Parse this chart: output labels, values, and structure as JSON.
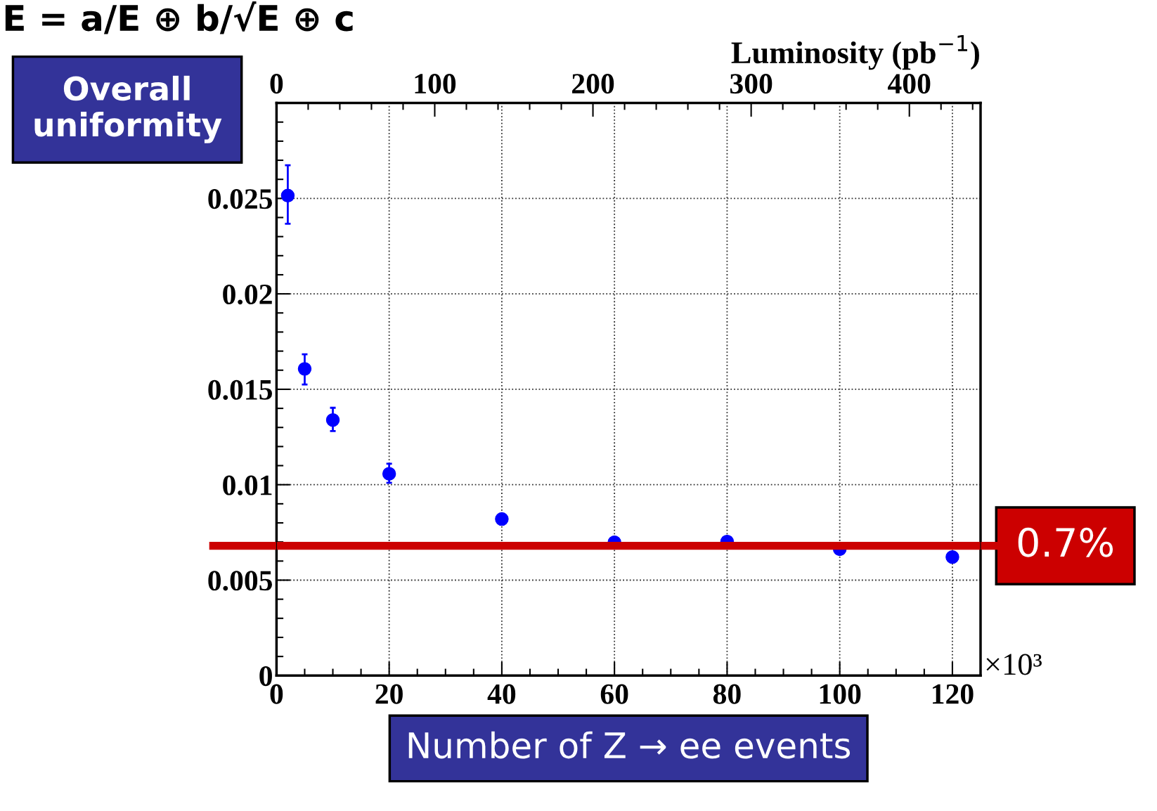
{
  "chart_data": {
    "type": "scatter",
    "title": "E = a/E ⊕ b/√E ⊕ c",
    "xlabel": "Number of Z → ee events",
    "x2label": "Luminosity (pb$^{−1}$)",
    "annotations": [
      "Overall uniformity",
      "×10³"
    ],
    "x": [
      2,
      5,
      10,
      20,
      40,
      60,
      80,
      100,
      120
    ],
    "series": [
      {
        "color": "#0000ff",
        "values": [
          0.02515,
          0.01607,
          0.01339,
          0.01057,
          0.0082,
          0.00698,
          0.00702,
          0.00662,
          0.00621
        ],
        "errors": [
          [
            0.02367,
            0.02674
          ],
          [
            0.01525,
            0.01683
          ],
          [
            0.01281,
            0.01403
          ],
          [
            0.0101,
            0.0111
          ],
          null,
          null,
          null,
          null,
          null
        ]
      }
    ],
    "xlim": [
      0,
      125
    ],
    "xticks": [
      0,
      20,
      40,
      60,
      80,
      100,
      120
    ],
    "x2lim": [
      0,
      445
    ],
    "x2ticks": [
      0,
      100,
      200,
      300,
      400
    ],
    "ylim": [
      0,
      0.03
    ],
    "yticks": [
      0,
      0.005,
      0.01,
      0.015,
      0.02,
      0.025
    ],
    "ref_lines": [
      {
        "axis": "y",
        "value": 0.0068,
        "label": "0.7%",
        "color": "#cc0000"
      }
    ],
    "grid": true,
    "marker": "circle"
  }
}
